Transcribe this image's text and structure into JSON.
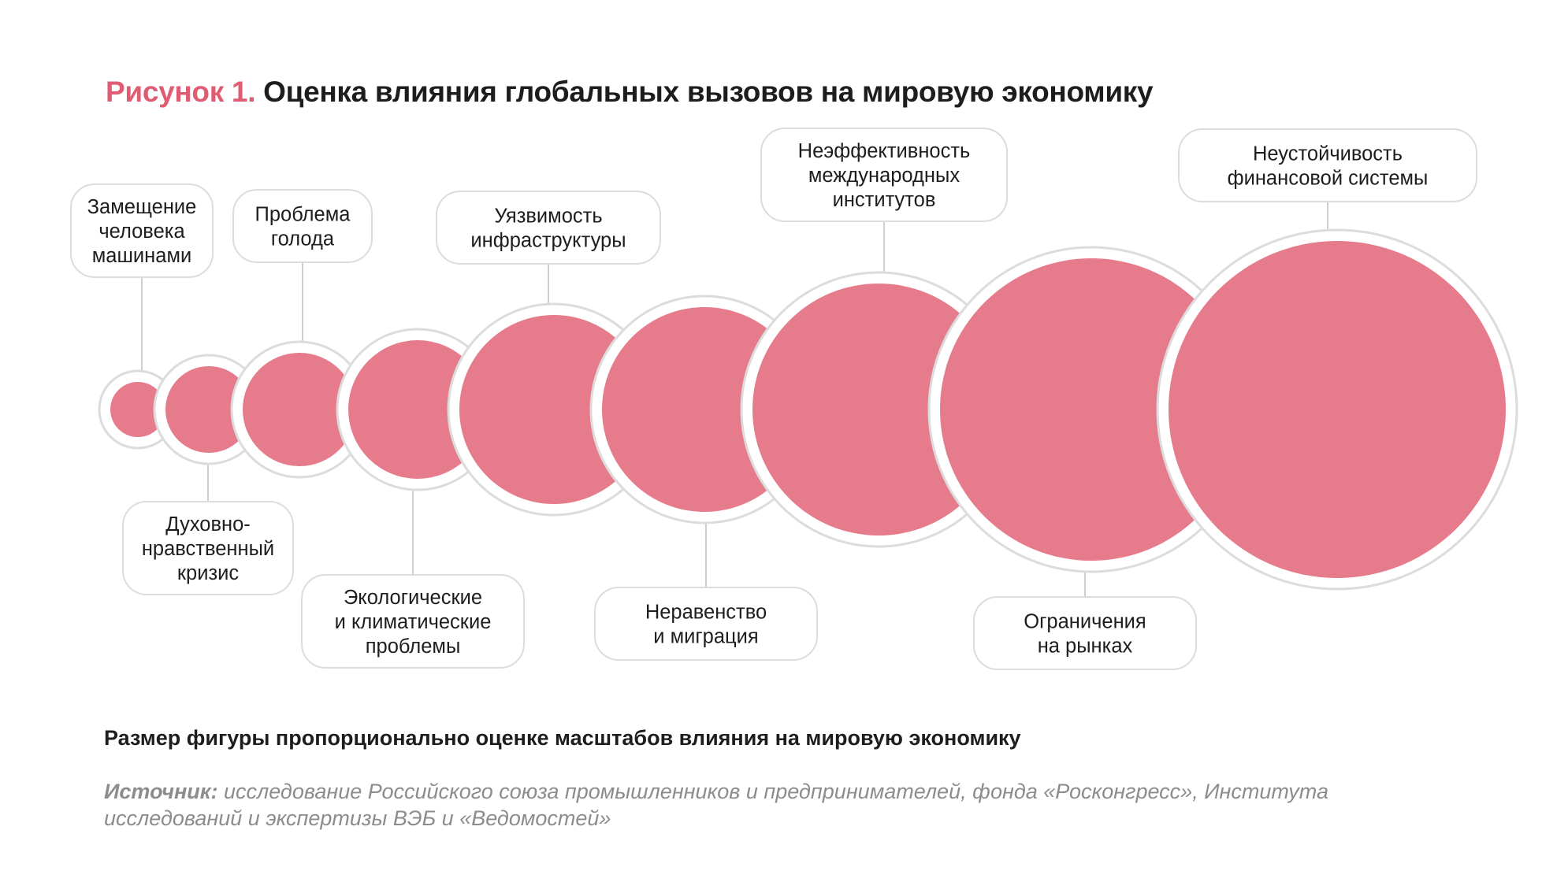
{
  "header": {
    "figure_label": "Рисунок 1.",
    "title": "Оценка влияния глобальных вызовов на мировую экономику"
  },
  "colors": {
    "accent": "#e05c72",
    "bubble": "#e67b8b",
    "ring": "#dcdcdc",
    "line": "#cfcfcf"
  },
  "chart_data": {
    "type": "bubble",
    "size_meaning": "Размер фигуры пропорционально оценке масштабов влияния на мировую экономику",
    "items": [
      {
        "label_lines": [
          "Замещение",
          "человека",
          "машинами"
        ],
        "rank": 1,
        "label_side": "top"
      },
      {
        "label_lines": [
          "Духовно-",
          "нравственный",
          "кризис"
        ],
        "rank": 2,
        "label_side": "bottom"
      },
      {
        "label_lines": [
          "Проблема",
          "голода"
        ],
        "rank": 3,
        "label_side": "top"
      },
      {
        "label_lines": [
          "Экологические",
          "и климатические",
          "проблемы"
        ],
        "rank": 4,
        "label_side": "bottom"
      },
      {
        "label_lines": [
          "Уязвимость",
          "инфраструктуры"
        ],
        "rank": 5,
        "label_side": "top"
      },
      {
        "label_lines": [
          "Неравенство",
          "и миграция"
        ],
        "rank": 6,
        "label_side": "bottom"
      },
      {
        "label_lines": [
          "Неэффективность",
          "международных",
          "институтов"
        ],
        "rank": 7,
        "label_side": "top"
      },
      {
        "label_lines": [
          "Ограничения",
          "на рынках"
        ],
        "rank": 8,
        "label_side": "bottom"
      },
      {
        "label_lines": [
          "Неустойчивость",
          "финансовой системы"
        ],
        "rank": 9,
        "label_side": "top"
      }
    ]
  },
  "footer": {
    "note": "Размер фигуры пропорционально оценке масштабов влияния на мировую экономику",
    "source_label": "Источник:",
    "source_text": " исследование Российского союза промышленников и предпринимателей, фонда «Росконгресс», Института исследований и экспертизы ВЭБ и «Ведомостей»"
  }
}
